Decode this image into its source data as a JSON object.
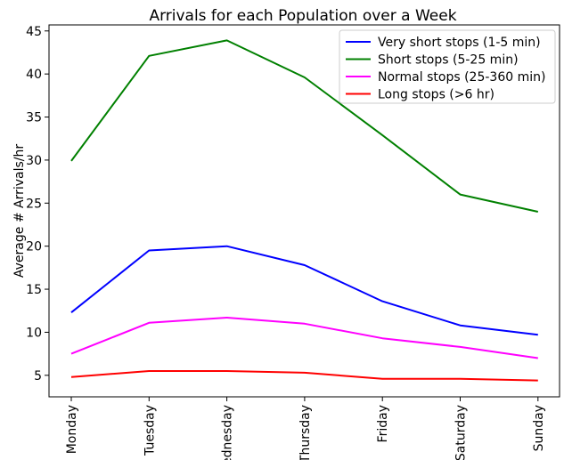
{
  "chart_data": {
    "type": "line",
    "title": "Arrivals for each Population over a Week",
    "xlabel": "",
    "ylabel": "Average # Arrivals/hr",
    "categories": [
      "Monday",
      "Tuesday",
      "Wednesday",
      "Thursday",
      "Friday",
      "Saturday",
      "Sunday"
    ],
    "ylim": [
      2.5,
      45.7
    ],
    "yticks": [
      5,
      10,
      15,
      20,
      25,
      30,
      35,
      40,
      45
    ],
    "grid": false,
    "legend_position": "top-right",
    "series": [
      {
        "name": "Very short stops (1-5 min)",
        "color": "#0000ff",
        "values": [
          12.3,
          19.5,
          20.0,
          17.8,
          13.6,
          10.8,
          9.7
        ]
      },
      {
        "name": "Short stops (5-25 min)",
        "color": "#008000",
        "values": [
          29.9,
          42.1,
          43.9,
          39.6,
          32.9,
          26.0,
          24.0
        ]
      },
      {
        "name": "Normal stops (25-360 min)",
        "color": "#ff00ff",
        "values": [
          7.5,
          11.1,
          11.7,
          11.0,
          9.3,
          8.3,
          7.0
        ]
      },
      {
        "name": "Long stops (>6 hr)",
        "color": "#ff0000",
        "values": [
          4.8,
          5.5,
          5.5,
          5.3,
          4.6,
          4.6,
          4.4
        ]
      }
    ]
  }
}
